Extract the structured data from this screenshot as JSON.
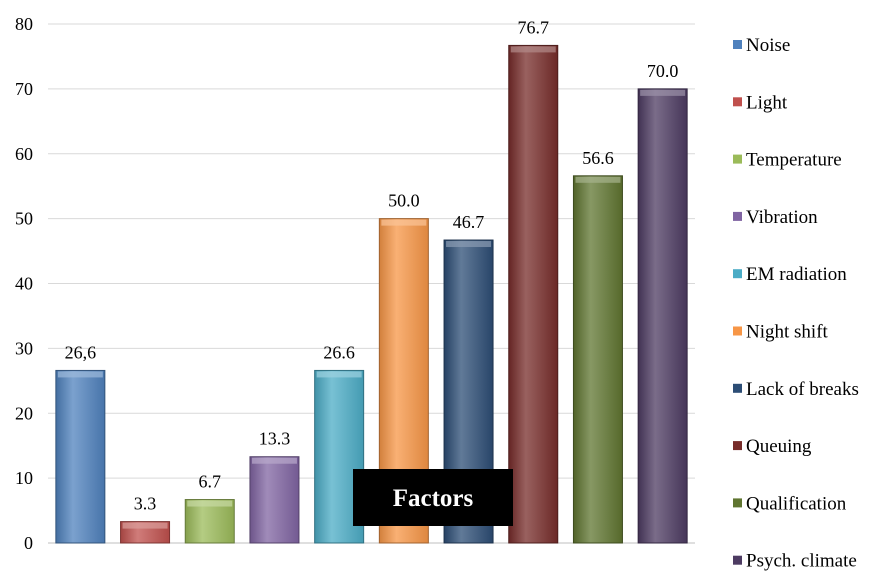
{
  "chart_data": {
    "type": "bar",
    "categories": [
      "Noise",
      "Light",
      "Temperature",
      "Vibration",
      "EM radiation",
      "Night shift",
      "Lack of breaks",
      "Queuing",
      "Qualification",
      "Psych. climate"
    ],
    "values": [
      26.6,
      3.3,
      6.7,
      13.3,
      26.6,
      50.0,
      46.7,
      76.7,
      56.6,
      70.0
    ],
    "data_labels": [
      "26,6",
      "3.3",
      "6.7",
      "13.3",
      "26.6",
      "50.0",
      "46.7",
      "76.7",
      "56.6",
      "70.0"
    ],
    "colors": [
      "#4f81bd",
      "#c0504d",
      "#9bbb59",
      "#8064a2",
      "#4bacc6",
      "#f79646",
      "#2c4d75",
      "#772c2a",
      "#5f7530",
      "#4d3b62"
    ],
    "ylim": [
      0,
      80
    ],
    "yticks": [
      "0",
      "10",
      "20",
      "30",
      "40",
      "50",
      "60",
      "70",
      "80"
    ],
    "grid": true,
    "legend": "right",
    "overlay_label": "Factors"
  }
}
